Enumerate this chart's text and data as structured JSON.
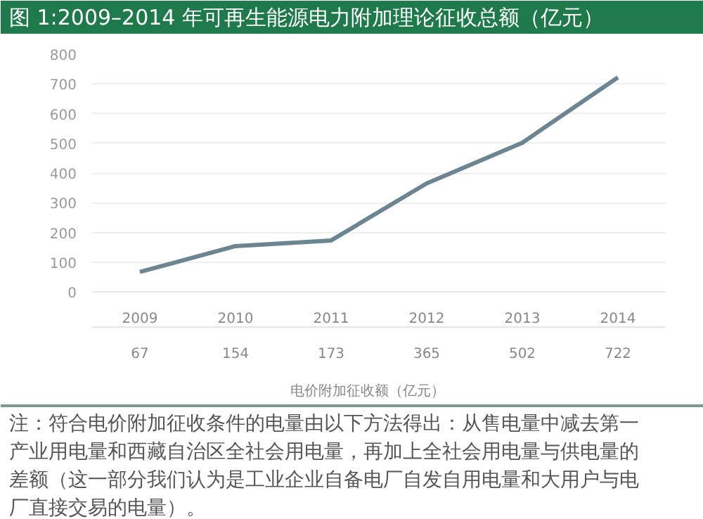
{
  "chart_data": {
    "type": "line",
    "title": "图 1:2009–2014 年可再生能源电力附加理论征收总额（亿元）",
    "categories": [
      "2009",
      "2010",
      "2011",
      "2012",
      "2013",
      "2014"
    ],
    "series": [
      {
        "name": "电价附加征收额（亿元）",
        "color": "#6b8591",
        "values": [
          67,
          154,
          173,
          365,
          502,
          722
        ]
      }
    ],
    "ylim": [
      0,
      800
    ],
    "yticks": [
      0,
      100,
      200,
      300,
      400,
      500,
      600,
      700,
      800
    ],
    "grid": "y",
    "legend": "bottom",
    "data_labels": true,
    "marker": "none",
    "line_style": "solid",
    "annotations": [
      "注：符合电价附加征收条件的电量由以下方法得出：从售电量中减去第一产业用电量和西藏自治区全社会用电量，再加上全社会用电量与供电量的差额（这一部分我们认为是工业企业自备电厂自发自用电量和大用户与电厂直接交易的电量）。"
    ]
  }
}
